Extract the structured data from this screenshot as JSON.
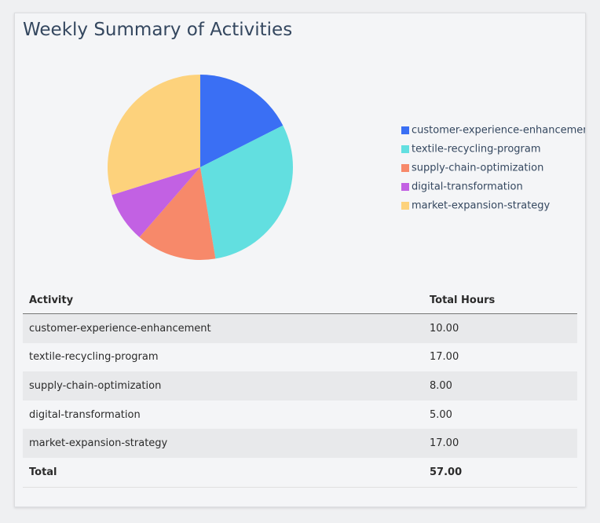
{
  "title": "Weekly Summary of Activities",
  "chart_data": {
    "type": "pie",
    "categories": [
      "customer-experience-enhancement",
      "textile-recycling-program",
      "supply-chain-optimization",
      "digital-transformation",
      "market-expansion-strategy"
    ],
    "values": [
      10,
      17,
      8,
      5,
      17
    ],
    "colors": [
      "#3a6ff4",
      "#62dfe0",
      "#f7896a",
      "#c261e3",
      "#fdd27c"
    ],
    "legend": "right"
  },
  "table": {
    "header": [
      "Activity",
      "Total Hours"
    ],
    "rows": [
      [
        "customer-experience-enhancement",
        "10.00"
      ],
      [
        "textile-recycling-program",
        "17.00"
      ],
      [
        "supply-chain-optimization",
        "8.00"
      ],
      [
        "digital-transformation",
        "5.00"
      ],
      [
        "market-expansion-strategy",
        "17.00"
      ]
    ],
    "footer": [
      "Total",
      "57.00"
    ]
  }
}
